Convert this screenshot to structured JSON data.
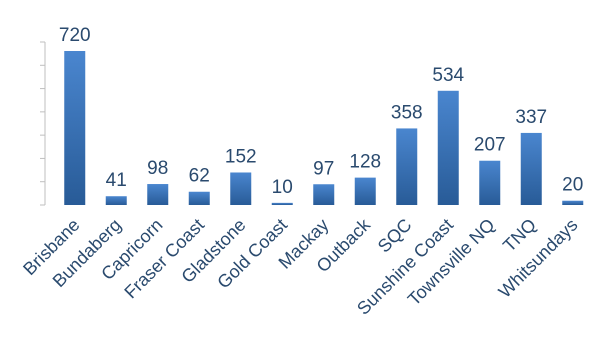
{
  "chart_data": {
    "type": "bar",
    "title": "",
    "xlabel": "",
    "ylabel": "",
    "categories": [
      "Brisbane",
      "Bundaberg",
      "Capricorn",
      "Fraser Coast",
      "Gladstone",
      "Gold Coast",
      "Mackay",
      "Outback",
      "SQC",
      "Sunshine Coast",
      "Townsville NQ",
      "TNQ",
      "Whitsundays"
    ],
    "values": [
      720,
      41,
      98,
      62,
      152,
      10,
      97,
      128,
      358,
      534,
      207,
      337,
      20
    ],
    "ylim": [
      0,
      720
    ],
    "grid": false,
    "legend": "none",
    "data_labels": true,
    "colors": {
      "bar_top": "#4a86cf",
      "bar_bottom": "#285b97",
      "label": "#2a4a6e",
      "axis": "#bfbfbf"
    }
  }
}
